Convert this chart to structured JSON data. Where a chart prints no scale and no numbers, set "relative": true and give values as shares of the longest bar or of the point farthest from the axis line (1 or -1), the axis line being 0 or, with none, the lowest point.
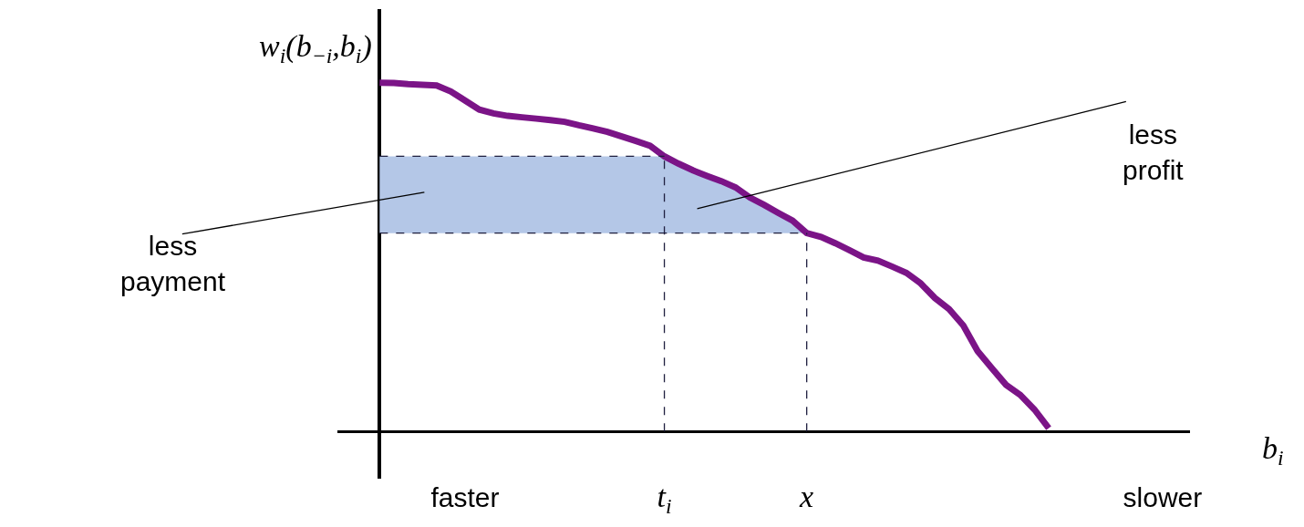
{
  "chart_data": {
    "type": "line",
    "relative": true,
    "xlabel": "b$_{i}$",
    "ylabel": "w$_{i}$(b$_{−i}$,b$_{i}$)",
    "categories": [
      null,
      null,
      null,
      null,
      null,
      null,
      "faster",
      null,
      null,
      null,
      null,
      null,
      null,
      null,
      null,
      null,
      null,
      null,
      null,
      null,
      "t$_{i}$",
      null,
      null,
      null,
      null,
      null,
      null,
      null,
      null,
      null,
      "x",
      null,
      null,
      null,
      null,
      null,
      null,
      null,
      null,
      null,
      null,
      null,
      null,
      null,
      null,
      null,
      null,
      null,
      null,
      null,
      null,
      null,
      null,
      null,
      null,
      "slower"
    ],
    "series": [
      {
        "color": "#7b1487",
        "line_style": "solid",
        "values": [
          1.0,
          0.999,
          0.996,
          0.994,
          0.992,
          0.975,
          0.949,
          0.923,
          0.912,
          0.905,
          0.901,
          0.897,
          0.893,
          0.888,
          0.878,
          0.869,
          0.859,
          0.846,
          0.833,
          0.819,
          0.789,
          0.768,
          0.749,
          0.733,
          0.718,
          0.7,
          0.671,
          0.65,
          0.627,
          0.605,
          0.569,
          0.558,
          0.54,
          0.52,
          0.499,
          0.49,
          0.473,
          0.455,
          0.425,
          0.383,
          0.351,
          0.304,
          0.231,
          0.182,
          0.134,
          0.105,
          0.063,
          0.01,
          null,
          null,
          null,
          null,
          null,
          null,
          null,
          null
        ]
      }
    ],
    "bands": [
      {
        "axis": "y",
        "from": 0.569,
        "to": 0.789,
        "color": "#b4c7e7"
      }
    ],
    "ref_lines": [
      {
        "axis": "x",
        "value": "t$_{i}$",
        "color": "#1f1f3f",
        "line_style": "dashed"
      },
      {
        "axis": "x",
        "value": "x",
        "color": "#1f1f3f",
        "line_style": "dashed"
      },
      {
        "axis": "y",
        "value": 0.789,
        "color": "#1f1f3f",
        "line_style": "dashed"
      },
      {
        "axis": "y",
        "value": 0.569,
        "color": "#1f1f3f",
        "line_style": "dashed"
      }
    ],
    "annotations": [
      "less\npayment",
      "less\nprofit"
    ]
  }
}
